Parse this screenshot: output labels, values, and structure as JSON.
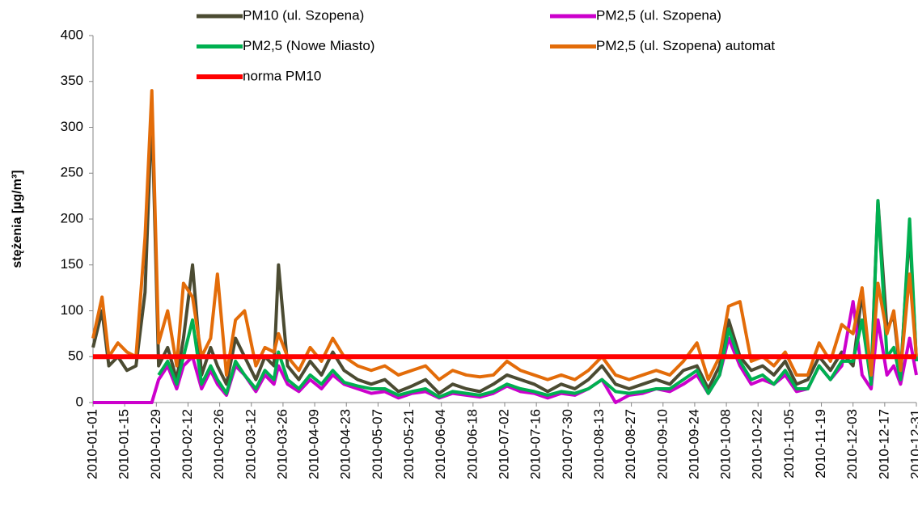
{
  "chart_data": {
    "type": "line",
    "y_label": "stężenia [µg/m³]",
    "x": [
      "2010-01-01",
      "2010-01-05",
      "2010-01-08",
      "2010-01-12",
      "2010-01-16",
      "2010-01-20",
      "2010-01-24",
      "2010-01-27",
      "2010-01-30",
      "2010-02-03",
      "2010-02-07",
      "2010-02-10",
      "2010-02-14",
      "2010-02-18",
      "2010-02-22",
      "2010-02-25",
      "2010-03-01",
      "2010-03-05",
      "2010-03-09",
      "2010-03-14",
      "2010-03-18",
      "2010-03-22",
      "2010-03-24",
      "2010-03-28",
      "2010-04-02",
      "2010-04-07",
      "2010-04-12",
      "2010-04-17",
      "2010-04-22",
      "2010-04-28",
      "2010-05-04",
      "2010-05-10",
      "2010-05-16",
      "2010-05-22",
      "2010-05-28",
      "2010-06-03",
      "2010-06-09",
      "2010-06-15",
      "2010-06-21",
      "2010-06-27",
      "2010-07-03",
      "2010-07-09",
      "2010-07-15",
      "2010-07-21",
      "2010-07-27",
      "2010-08-02",
      "2010-08-08",
      "2010-08-14",
      "2010-08-20",
      "2010-08-26",
      "2010-09-01",
      "2010-09-07",
      "2010-09-13",
      "2010-09-19",
      "2010-09-25",
      "2010-09-30",
      "2010-10-05",
      "2010-10-09",
      "2010-10-14",
      "2010-10-19",
      "2010-10-24",
      "2010-10-29",
      "2010-11-03",
      "2010-11-08",
      "2010-11-13",
      "2010-11-18",
      "2010-11-23",
      "2010-11-28",
      "2010-12-03",
      "2010-12-07",
      "2010-12-11",
      "2010-12-14",
      "2010-12-18",
      "2010-12-21",
      "2010-12-24",
      "2010-12-28",
      "2010-12-31"
    ],
    "series": [
      {
        "name": "PM10 (ul. Szopena)",
        "color": "#4b4b32",
        "values": [
          60,
          100,
          40,
          50,
          35,
          40,
          120,
          320,
          40,
          60,
          25,
          70,
          150,
          30,
          60,
          40,
          20,
          70,
          50,
          25,
          50,
          40,
          150,
          40,
          25,
          45,
          30,
          55,
          35,
          25,
          20,
          25,
          12,
          18,
          25,
          10,
          20,
          15,
          12,
          20,
          30,
          25,
          20,
          12,
          20,
          15,
          25,
          40,
          20,
          15,
          20,
          25,
          20,
          35,
          40,
          15,
          40,
          90,
          50,
          35,
          40,
          30,
          45,
          20,
          25,
          50,
          35,
          55,
          40,
          120,
          25,
          220,
          80,
          95,
          30,
          190,
          45
        ]
      },
      {
        "name": "PM2,5 (ul. Szopena)",
        "color": "#cc00cc",
        "values": [
          0,
          0,
          0,
          0,
          0,
          0,
          0,
          0,
          25,
          40,
          15,
          40,
          50,
          15,
          35,
          20,
          8,
          40,
          30,
          12,
          30,
          20,
          40,
          20,
          12,
          25,
          15,
          30,
          20,
          15,
          10,
          12,
          5,
          10,
          12,
          5,
          10,
          8,
          6,
          10,
          18,
          12,
          10,
          5,
          10,
          8,
          15,
          25,
          0,
          8,
          10,
          15,
          12,
          20,
          30,
          10,
          30,
          70,
          40,
          20,
          25,
          20,
          30,
          12,
          15,
          40,
          25,
          40,
          110,
          30,
          15,
          90,
          30,
          40,
          20,
          70,
          30
        ]
      },
      {
        "name": "PM2,5 (Nowe Miasto)",
        "color": "#00b050",
        "values": [
          null,
          null,
          null,
          null,
          null,
          null,
          null,
          null,
          30,
          45,
          20,
          50,
          90,
          20,
          40,
          25,
          10,
          45,
          30,
          15,
          35,
          25,
          55,
          25,
          15,
          30,
          20,
          35,
          22,
          18,
          15,
          15,
          8,
          12,
          15,
          6,
          12,
          10,
          8,
          12,
          20,
          15,
          12,
          8,
          12,
          10,
          15,
          25,
          12,
          10,
          12,
          15,
          15,
          25,
          35,
          10,
          30,
          80,
          45,
          25,
          30,
          20,
          35,
          15,
          15,
          40,
          25,
          45,
          45,
          90,
          20,
          220,
          50,
          60,
          25,
          200,
          45
        ]
      },
      {
        "name": "PM2,5 (ul. Szopena) automat",
        "color": "#e36c09",
        "values": [
          70,
          115,
          50,
          65,
          55,
          50,
          180,
          340,
          65,
          100,
          40,
          130,
          115,
          50,
          70,
          140,
          30,
          90,
          100,
          40,
          60,
          55,
          75,
          50,
          35,
          60,
          45,
          70,
          50,
          40,
          35,
          40,
          30,
          35,
          40,
          25,
          35,
          30,
          28,
          30,
          45,
          35,
          30,
          25,
          30,
          25,
          35,
          50,
          30,
          25,
          30,
          35,
          30,
          45,
          65,
          25,
          50,
          105,
          110,
          45,
          50,
          40,
          55,
          30,
          30,
          65,
          45,
          85,
          75,
          125,
          30,
          130,
          75,
          100,
          35,
          140,
          50
        ]
      }
    ],
    "norm": {
      "name": "norma PM10",
      "color": "#ff0000",
      "value": 50
    },
    "xlim": [
      "2010-01-01",
      "2010-12-31"
    ],
    "xticks": [
      "2010-01-01",
      "2010-01-15",
      "2010-01-29",
      "2010-02-12",
      "2010-02-26",
      "2010-03-12",
      "2010-03-26",
      "2010-04-09",
      "2010-04-23",
      "2010-05-07",
      "2010-05-21",
      "2010-06-04",
      "2010-06-18",
      "2010-07-02",
      "2010-07-16",
      "2010-07-30",
      "2010-08-13",
      "2010-08-27",
      "2010-09-10",
      "2010-09-24",
      "2010-10-08",
      "2010-10-22",
      "2010-11-05",
      "2010-11-19",
      "2010-12-03",
      "2010-12-17",
      "2010-12-31"
    ],
    "ylim": [
      0,
      400
    ],
    "yticks": [
      0,
      50,
      100,
      150,
      200,
      250,
      300,
      350,
      400
    ],
    "grid": false
  }
}
